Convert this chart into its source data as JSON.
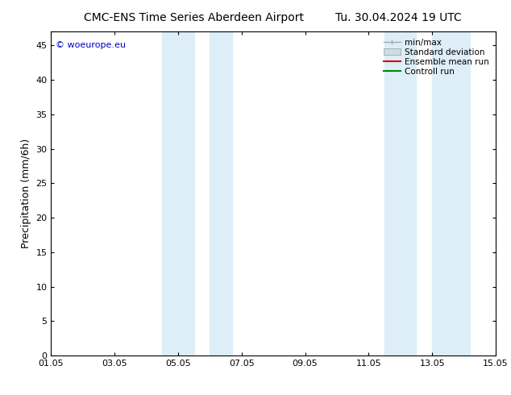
{
  "title_left": "CMC-ENS Time Series Aberdeen Airport",
  "title_right": "Tu. 30.04.2024 19 UTC",
  "ylabel": "Precipitation (mm/6h)",
  "xlim": [
    0,
    14
  ],
  "ylim": [
    0,
    47
  ],
  "yticks": [
    0,
    5,
    10,
    15,
    20,
    25,
    30,
    35,
    40,
    45
  ],
  "xtick_positions": [
    0,
    2,
    4,
    6,
    8,
    10,
    12,
    14
  ],
  "xtick_labels": [
    "01.05",
    "03.05",
    "05.05",
    "07.05",
    "09.05",
    "11.05",
    "13.05",
    "15.05"
  ],
  "shaded_regions": [
    [
      3.5,
      4.5
    ],
    [
      5.0,
      5.7
    ],
    [
      10.5,
      11.5
    ],
    [
      12.0,
      13.2
    ]
  ],
  "shaded_color": "#ddeef8",
  "background_color": "#ffffff",
  "legend_entries": [
    {
      "label": "min/max",
      "color": "#aaaaaa",
      "lw": 1.0,
      "style": "solid"
    },
    {
      "label": "Standard deviation",
      "color": "#ccdde8",
      "lw": 6,
      "style": "solid"
    },
    {
      "label": "Ensemble mean run",
      "color": "#dd0000",
      "lw": 1.5,
      "style": "solid"
    },
    {
      "label": "Controll run",
      "color": "#008800",
      "lw": 1.5,
      "style": "solid"
    }
  ],
  "watermark": "© woeurope.eu",
  "watermark_color": "#0000cc",
  "title_fontsize": 10,
  "tick_fontsize": 8,
  "ylabel_fontsize": 9,
  "legend_fontsize": 7.5,
  "border_color": "#000000"
}
